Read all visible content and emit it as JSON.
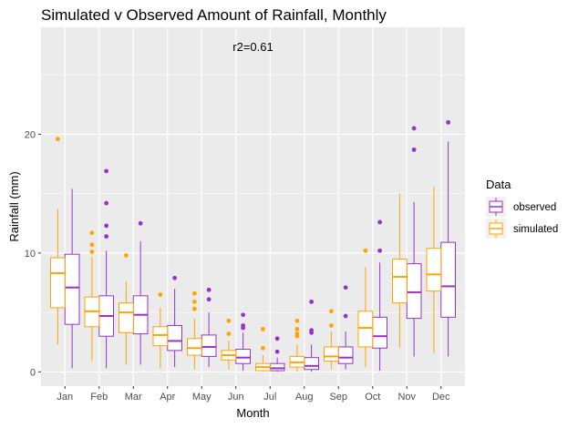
{
  "chart_data": {
    "type": "boxplot",
    "title": "Simulated v Observed Amount of Rainfall, Monthly",
    "annotation": "r2=0.61",
    "xlabel": "Month",
    "ylabel": "Rainfall (mm)",
    "ylim": [
      -1.2,
      29.0
    ],
    "yticks": [
      0,
      10,
      20
    ],
    "categories": [
      "Jan",
      "Feb",
      "Mar",
      "Apr",
      "May",
      "Jun",
      "Jul",
      "Aug",
      "Sep",
      "Oct",
      "Nov",
      "Dec"
    ],
    "grid": true,
    "legend_position": "right",
    "legend_title": "Data",
    "series": [
      {
        "name": "observed",
        "color": "#9932CC",
        "boxes": [
          {
            "min": 0.3,
            "q1": 4.0,
            "median": 7.1,
            "q3": 9.9,
            "max": 15.4,
            "outliers": []
          },
          {
            "min": 0.3,
            "q1": 3.0,
            "median": 4.7,
            "q3": 6.4,
            "max": 10.2,
            "outliers": [
              11.4,
              12.3,
              14.2,
              16.9
            ]
          },
          {
            "min": 0.6,
            "q1": 3.2,
            "median": 4.8,
            "q3": 6.4,
            "max": 11.0,
            "outliers": [
              12.5
            ]
          },
          {
            "min": 0.4,
            "q1": 1.8,
            "median": 2.6,
            "q3": 3.9,
            "max": 7.0,
            "outliers": [
              7.9
            ]
          },
          {
            "min": 0.4,
            "q1": 1.3,
            "median": 2.1,
            "q3": 3.1,
            "max": 5.0,
            "outliers": [
              6.1,
              6.9
            ]
          },
          {
            "min": 0.1,
            "q1": 0.7,
            "median": 1.2,
            "q3": 1.9,
            "max": 3.3,
            "outliers": [
              3.7,
              3.9,
              4.8
            ]
          },
          {
            "min": 0.0,
            "q1": 0.1,
            "median": 0.3,
            "q3": 0.7,
            "max": 1.2,
            "outliers": [
              1.7,
              2.8
            ]
          },
          {
            "min": 0.0,
            "q1": 0.2,
            "median": 0.5,
            "q3": 1.2,
            "max": 2.3,
            "outliers": [
              3.3,
              3.5,
              5.9
            ]
          },
          {
            "min": 0.2,
            "q1": 0.7,
            "median": 1.2,
            "q3": 2.1,
            "max": 3.4,
            "outliers": [
              4.7,
              7.1
            ]
          },
          {
            "min": 0.1,
            "q1": 2.0,
            "median": 3.0,
            "q3": 4.6,
            "max": 9.2,
            "outliers": [
              10.2,
              12.6
            ]
          },
          {
            "min": 1.3,
            "q1": 4.5,
            "median": 6.7,
            "q3": 9.1,
            "max": 14.3,
            "outliers": [
              18.7,
              20.5
            ]
          },
          {
            "min": 1.3,
            "q1": 4.6,
            "median": 7.2,
            "q3": 10.9,
            "max": 19.4,
            "outliers": [
              21.0
            ]
          }
        ]
      },
      {
        "name": "simulated",
        "color": "#FFA500",
        "boxes": [
          {
            "min": 2.3,
            "q1": 5.4,
            "median": 8.3,
            "q3": 9.6,
            "max": 13.7,
            "outliers": [
              19.6
            ]
          },
          {
            "min": 0.9,
            "q1": 3.8,
            "median": 5.1,
            "q3": 6.3,
            "max": 9.7,
            "outliers": [
              10.1,
              10.7,
              11.7
            ]
          },
          {
            "min": 0.6,
            "q1": 3.3,
            "median": 5.0,
            "q3": 5.8,
            "max": 7.6,
            "outliers": [
              9.8
            ]
          },
          {
            "min": 0.3,
            "q1": 2.2,
            "median": 3.1,
            "q3": 3.8,
            "max": 5.4,
            "outliers": [
              6.5
            ]
          },
          {
            "min": 0.2,
            "q1": 1.4,
            "median": 2.0,
            "q3": 2.8,
            "max": 4.5,
            "outliers": [
              5.3,
              5.9,
              6.6
            ]
          },
          {
            "min": 0.2,
            "q1": 1.0,
            "median": 1.4,
            "q3": 1.8,
            "max": 2.6,
            "outliers": [
              3.2,
              4.3
            ]
          },
          {
            "min": 0.0,
            "q1": 0.1,
            "median": 0.4,
            "q3": 0.7,
            "max": 1.4,
            "outliers": [
              2.0,
              3.6
            ]
          },
          {
            "min": 0.0,
            "q1": 0.4,
            "median": 0.8,
            "q3": 1.3,
            "max": 2.3,
            "outliers": [
              3.0,
              3.2,
              3.6,
              4.3
            ]
          },
          {
            "min": 0.2,
            "q1": 0.9,
            "median": 1.3,
            "q3": 2.1,
            "max": 3.4,
            "outliers": [
              3.9,
              5.1
            ]
          },
          {
            "min": 0.4,
            "q1": 2.1,
            "median": 3.7,
            "q3": 5.1,
            "max": 8.8,
            "outliers": [
              10.2
            ]
          },
          {
            "min": 2.0,
            "q1": 5.8,
            "median": 8.0,
            "q3": 9.5,
            "max": 15.0,
            "outliers": []
          },
          {
            "min": 1.6,
            "q1": 6.8,
            "median": 8.2,
            "q3": 10.4,
            "max": 15.6,
            "outliers": []
          }
        ]
      }
    ]
  }
}
